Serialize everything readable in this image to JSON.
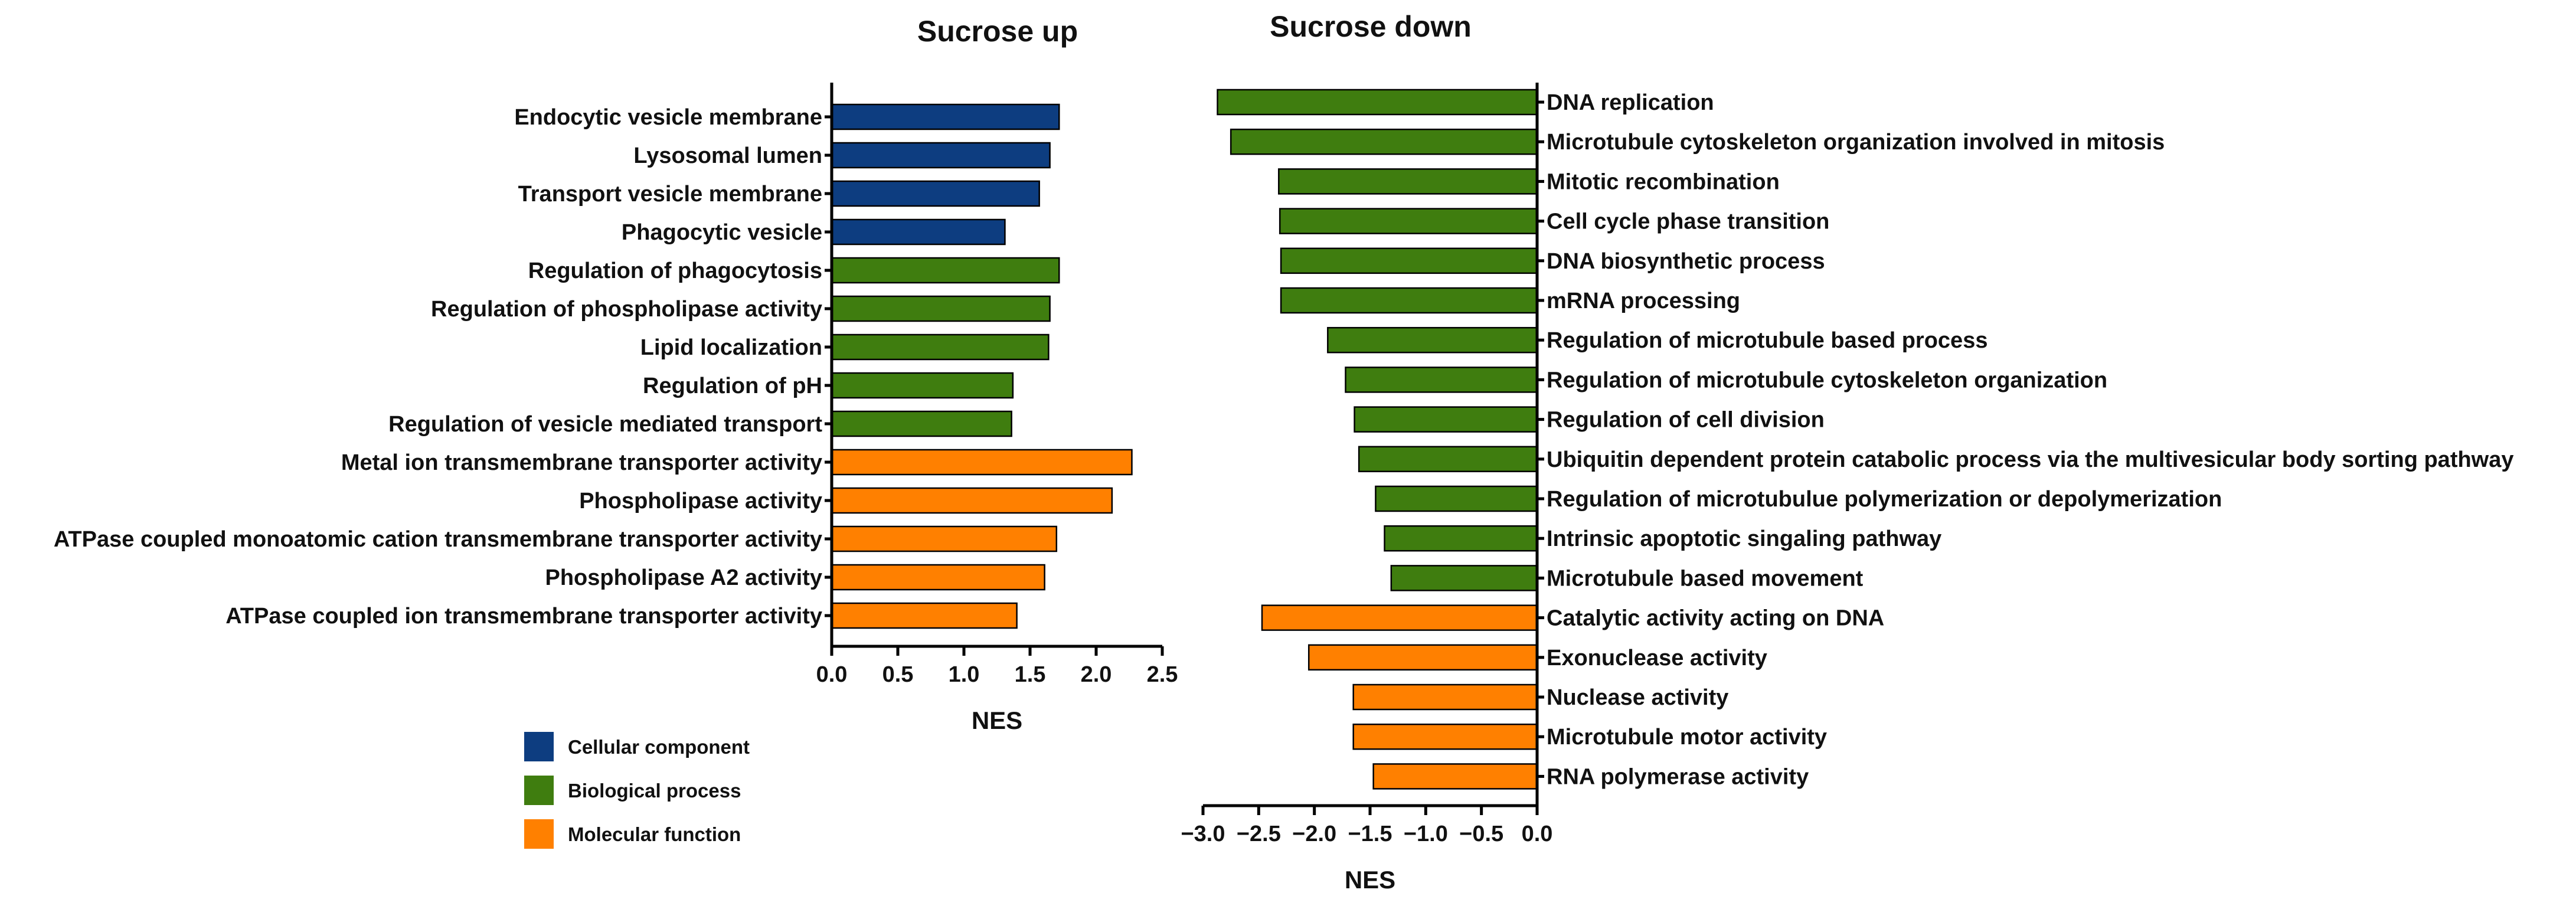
{
  "chart_data": [
    {
      "type": "bar",
      "orientation": "horizontal",
      "title": "Sucrose up",
      "xlabel": "NES",
      "ylabel": "",
      "xlim": [
        0,
        2.5
      ],
      "xticks": [
        "0.0",
        "0.5",
        "1.0",
        "1.5",
        "2.0",
        "2.5"
      ],
      "categories": [
        "Endocytic vesicle membrane",
        "Lysosomal lumen",
        "Transport vesicle membrane",
        "Phagocytic vesicle",
        "Regulation of phagocytosis",
        "Regulation of phospholipase activity",
        "Lipid localization",
        "Regulation of pH",
        "Regulation of vesicle mediated transport",
        "Metal ion transmembrane transporter activity",
        "Phospholipase activity",
        "ATPase coupled monoatomic cation transmembrane transporter activity",
        "Phospholipase A2 activity",
        "ATPase coupled ion transmembrane transporter activity"
      ],
      "values": [
        1.72,
        1.65,
        1.57,
        1.31,
        1.72,
        1.65,
        1.64,
        1.37,
        1.36,
        2.27,
        2.12,
        1.7,
        1.61,
        1.4
      ],
      "groups": [
        "cc",
        "cc",
        "cc",
        "cc",
        "bp",
        "bp",
        "bp",
        "bp",
        "bp",
        "mf",
        "mf",
        "mf",
        "mf",
        "mf"
      ]
    },
    {
      "type": "bar",
      "orientation": "horizontal",
      "title": "Sucrose down",
      "xlabel": "NES",
      "ylabel": "",
      "xlim": [
        -3.0,
        0.0
      ],
      "xticks": [
        "−3.0",
        "−2.5",
        "−2.0",
        "−1.5",
        "−1.0",
        "−0.5",
        "0.0"
      ],
      "categories": [
        "DNA replication",
        "Microtubule cytoskeleton organization involved in mitosis",
        "Mitotic recombination",
        "Cell cycle phase transition",
        "DNA biosynthetic process",
        "mRNA processing",
        "Regulation of microtubule based process",
        "Regulation of microtubule cytoskeleton organization",
        "Regulation of cell division",
        "Ubiquitin dependent protein catabolic process via the multivesicular body sorting pathway",
        "Regulation of microtubulue polymerization or depolymerization",
        "Intrinsic apoptotic singaling pathway",
        "Microtubule based movement",
        "Catalytic activity acting on DNA",
        "Exonuclease activity",
        "Nuclease activity",
        "Microtubule motor activity",
        "RNA polymerase activity"
      ],
      "values": [
        -2.87,
        -2.75,
        -2.32,
        -2.31,
        -2.3,
        -2.3,
        -1.88,
        -1.72,
        -1.64,
        -1.6,
        -1.45,
        -1.37,
        -1.31,
        -2.47,
        -2.05,
        -1.65,
        -1.65,
        -1.47
      ],
      "groups": [
        "bp",
        "bp",
        "bp",
        "bp",
        "bp",
        "bp",
        "bp",
        "bp",
        "bp",
        "bp",
        "bp",
        "bp",
        "bp",
        "mf",
        "mf",
        "mf",
        "mf",
        "mf"
      ]
    }
  ],
  "legend": {
    "placement": "bottom-left",
    "items": [
      {
        "key": "cc",
        "label": "Cellular component",
        "color": "#0d3d80"
      },
      {
        "key": "bp",
        "label": "Biological process",
        "color": "#3f7d0f"
      },
      {
        "key": "mf",
        "label": "Molecular function",
        "color": "#ff8000"
      }
    ]
  }
}
